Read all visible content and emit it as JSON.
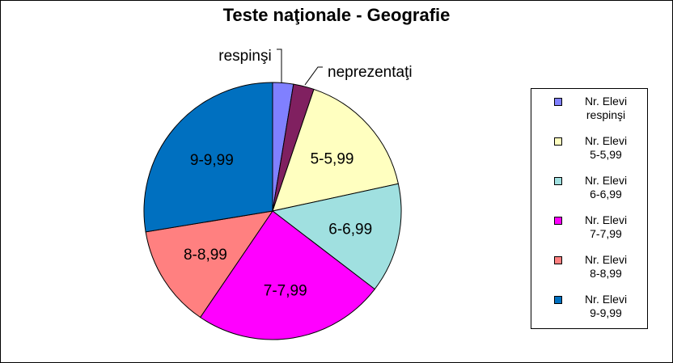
{
  "chart_data": {
    "type": "pie",
    "title": "Teste naţionale - Geografie",
    "slices": [
      {
        "label": "respinşi",
        "value": 2.6,
        "color": "#8080FF",
        "label_outside": true
      },
      {
        "label": "neprezentaţi",
        "value": 2.6,
        "color": "#802060",
        "label_outside": true
      },
      {
        "label": "5-5,99",
        "value": 16.4,
        "color": "#FFFFC0",
        "label_outside": false
      },
      {
        "label": "6-6,99",
        "value": 13.8,
        "color": "#A0E0E0",
        "label_outside": false
      },
      {
        "label": "7-7,99",
        "value": 24.1,
        "color": "#FF00FF",
        "label_outside": false
      },
      {
        "label": "8-8,99",
        "value": 12.9,
        "color": "#FF8080",
        "label_outside": false
      },
      {
        "label": "9-9,99",
        "value": 27.6,
        "color": "#0070C0",
        "label_outside": false
      }
    ],
    "legend": {
      "placement": "right",
      "entries": [
        {
          "line1": "Nr. Elevi",
          "line2": "respinşi",
          "color": "#8080FF"
        },
        {
          "line1": "Nr. Elevi",
          "line2": "5-5,99",
          "color": "#FFFFC0"
        },
        {
          "line1": "Nr. Elevi",
          "line2": "6-6,99",
          "color": "#A0E0E0"
        },
        {
          "line1": "Nr. Elevi",
          "line2": "7-7,99",
          "color": "#FF00FF"
        },
        {
          "line1": "Nr. Elevi",
          "line2": "8-8,99",
          "color": "#FF8080"
        },
        {
          "line1": "Nr. Elevi",
          "line2": "9-9,99",
          "color": "#0070C0"
        }
      ]
    }
  }
}
